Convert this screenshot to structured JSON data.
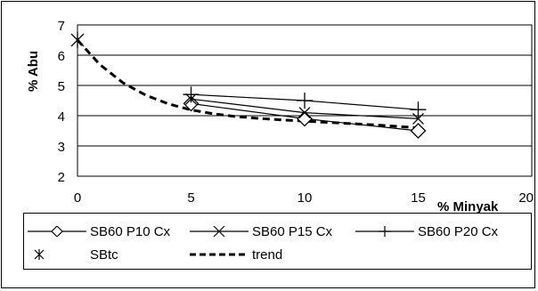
{
  "chart_data": {
    "type": "line",
    "title": "",
    "xlabel": "% Minyak",
    "ylabel": "% Abu",
    "xlim": [
      0,
      20
    ],
    "ylim": [
      2,
      7
    ],
    "x_ticks": [
      "0",
      "5",
      "10",
      "15",
      "20"
    ],
    "y_ticks": [
      "2",
      "3",
      "4",
      "5",
      "6",
      "7"
    ],
    "grid": "horizontal",
    "legend_position": "bottom",
    "series": [
      {
        "name": "SB60 P10 Cx",
        "marker": "diamond",
        "style": "solid",
        "x": [
          5,
          10,
          15
        ],
        "y": [
          4.4,
          3.9,
          3.5
        ]
      },
      {
        "name": "SB60 P15 Cx",
        "marker": "x",
        "style": "solid",
        "x": [
          5,
          10,
          15
        ],
        "y": [
          4.55,
          4.1,
          3.9
        ]
      },
      {
        "name": "SB60 P20 Cx",
        "marker": "plus",
        "style": "solid",
        "x": [
          5,
          10,
          15
        ],
        "y": [
          4.7,
          4.5,
          4.2
        ]
      },
      {
        "name": "SBtc",
        "marker": "star",
        "style": "none",
        "x": [
          0
        ],
        "y": [
          6.5
        ]
      },
      {
        "name": "trend",
        "marker": "none",
        "style": "dashed",
        "x": [
          0,
          1,
          2,
          3,
          4,
          5,
          6,
          7,
          8,
          9,
          10,
          11,
          12,
          13,
          14,
          15
        ],
        "y": [
          6.5,
          5.68,
          5.09,
          4.68,
          4.39,
          4.19,
          4.06,
          3.97,
          3.91,
          3.86,
          3.82,
          3.78,
          3.74,
          3.7,
          3.65,
          3.6
        ]
      }
    ]
  },
  "colors": {
    "line": "#000000",
    "grid": "#000000",
    "background": "#ffffff"
  }
}
